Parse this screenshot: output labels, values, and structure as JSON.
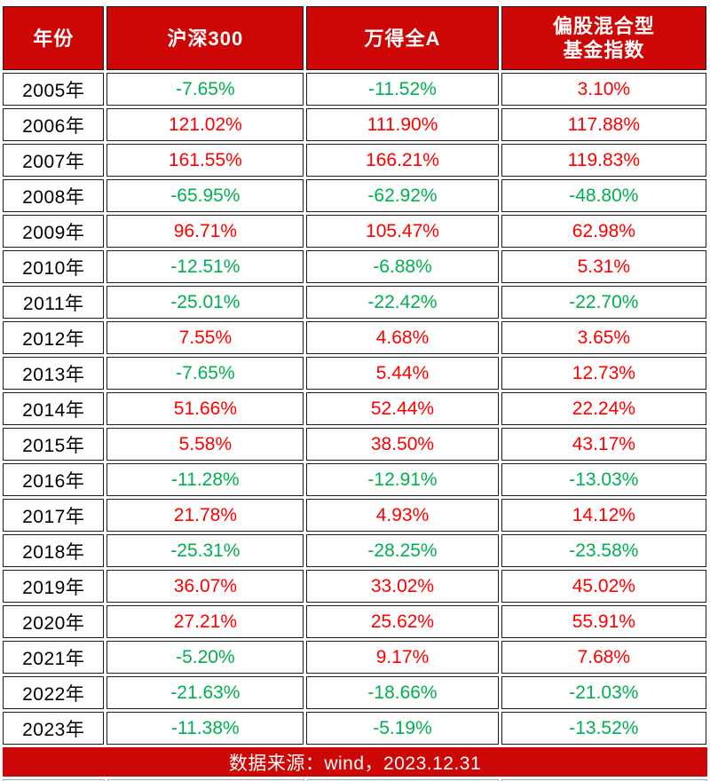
{
  "palette": {
    "header_bg": "#cd0606",
    "header_text": "#ffffff",
    "positive_value": "#ff0000",
    "negative_value": "#00b050",
    "year_text": "#000000",
    "cell_border": "#1c1c1c"
  },
  "table": {
    "columns": [
      {
        "label": "年份",
        "label2": ""
      },
      {
        "label": "沪深300",
        "label2": ""
      },
      {
        "label": "万得全A",
        "label2": ""
      },
      {
        "label": "偏股混合型",
        "label2": "基金指数"
      }
    ],
    "rows": [
      {
        "year": "2005年",
        "values": [
          "-7.65%",
          "-11.52%",
          "3.10%"
        ]
      },
      {
        "year": "2006年",
        "values": [
          "121.02%",
          "111.90%",
          "117.88%"
        ]
      },
      {
        "year": "2007年",
        "values": [
          "161.55%",
          "166.21%",
          "119.83%"
        ]
      },
      {
        "year": "2008年",
        "values": [
          "-65.95%",
          "-62.92%",
          "-48.80%"
        ]
      },
      {
        "year": "2009年",
        "values": [
          "96.71%",
          "105.47%",
          "62.98%"
        ]
      },
      {
        "year": "2010年",
        "values": [
          "-12.51%",
          "-6.88%",
          "5.31%"
        ]
      },
      {
        "year": "2011年",
        "values": [
          "-25.01%",
          "-22.42%",
          "-22.70%"
        ]
      },
      {
        "year": "2012年",
        "values": [
          "7.55%",
          "4.68%",
          "3.65%"
        ]
      },
      {
        "year": "2013年",
        "values": [
          "-7.65%",
          "5.44%",
          "12.73%"
        ]
      },
      {
        "year": "2014年",
        "values": [
          "51.66%",
          "52.44%",
          "22.24%"
        ]
      },
      {
        "year": "2015年",
        "values": [
          "5.58%",
          "38.50%",
          "43.17%"
        ]
      },
      {
        "year": "2016年",
        "values": [
          "-11.28%",
          "-12.91%",
          "-13.03%"
        ]
      },
      {
        "year": "2017年",
        "values": [
          "21.78%",
          "4.93%",
          "14.12%"
        ]
      },
      {
        "year": "2018年",
        "values": [
          "-25.31%",
          "-28.25%",
          "-23.58%"
        ]
      },
      {
        "year": "2019年",
        "values": [
          "36.07%",
          "33.02%",
          "45.02%"
        ]
      },
      {
        "year": "2020年",
        "values": [
          "27.21%",
          "25.62%",
          "55.91%"
        ]
      },
      {
        "year": "2021年",
        "values": [
          "-5.20%",
          "9.17%",
          "7.68%"
        ]
      },
      {
        "year": "2022年",
        "values": [
          "-21.63%",
          "-18.66%",
          "-21.03%"
        ]
      },
      {
        "year": "2023年",
        "values": [
          "-11.38%",
          "-5.19%",
          "-13.52%"
        ]
      }
    ]
  },
  "footer": {
    "text": "数据来源：wind，2023.12.31"
  },
  "chart_data": {
    "type": "table",
    "columns": [
      "年份",
      "沪深300",
      "万得全A",
      "偏股混合型基金指数"
    ],
    "categories": [
      "2005",
      "2006",
      "2007",
      "2008",
      "2009",
      "2010",
      "2011",
      "2012",
      "2013",
      "2014",
      "2015",
      "2016",
      "2017",
      "2018",
      "2019",
      "2020",
      "2021",
      "2022",
      "2023"
    ],
    "series": [
      {
        "name": "沪深300",
        "values": [
          -7.65,
          121.02,
          161.55,
          -65.95,
          96.71,
          -12.51,
          -25.01,
          7.55,
          -7.65,
          51.66,
          5.58,
          -11.28,
          21.78,
          -25.31,
          36.07,
          27.21,
          -5.2,
          -21.63,
          -11.38
        ]
      },
      {
        "name": "万得全A",
        "values": [
          -11.52,
          111.9,
          166.21,
          -62.92,
          105.47,
          -6.88,
          -22.42,
          4.68,
          5.44,
          52.44,
          38.5,
          -12.91,
          4.93,
          -28.25,
          33.02,
          25.62,
          9.17,
          -18.66,
          -5.19
        ]
      },
      {
        "name": "偏股混合型基金指数",
        "values": [
          3.1,
          117.88,
          119.83,
          -48.8,
          62.98,
          5.31,
          -22.7,
          3.65,
          12.73,
          22.24,
          43.17,
          -13.03,
          14.12,
          -23.58,
          45.02,
          55.91,
          7.68,
          -21.03,
          -13.52
        ]
      }
    ],
    "units": "%",
    "value_color_convention": "positive shown red (#ff0000), negative shown green (#00b050)",
    "source_note": "数据来源：wind，2023.12.31"
  }
}
